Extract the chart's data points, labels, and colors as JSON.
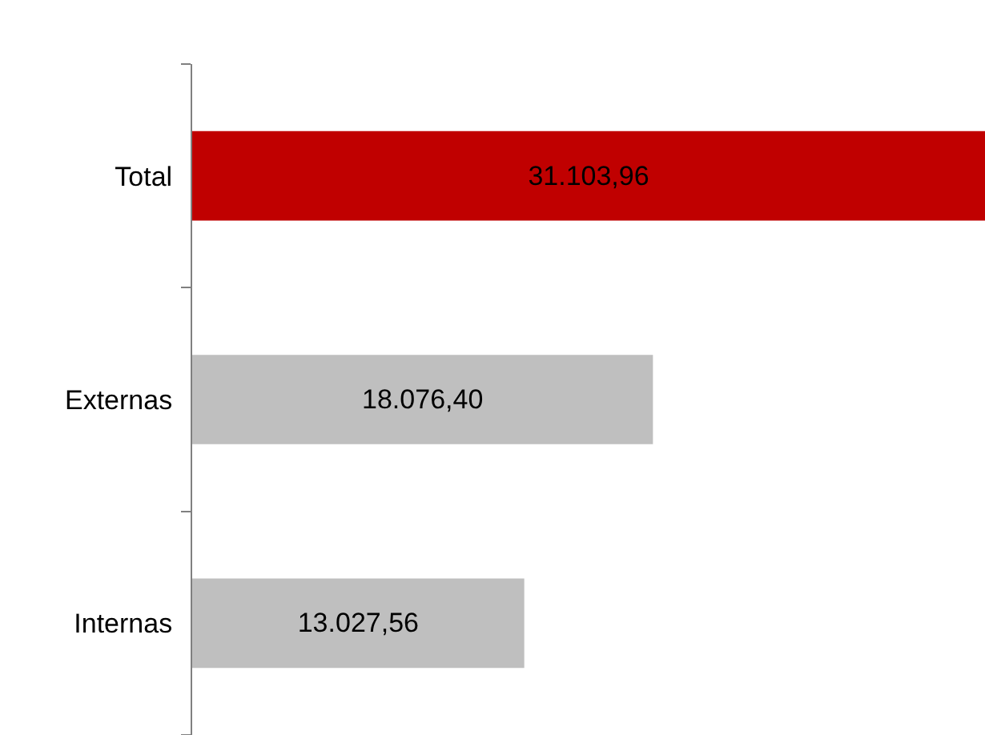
{
  "chart_data": {
    "type": "bar",
    "orientation": "horizontal",
    "categories": [
      "Total",
      "Externas",
      "Internas"
    ],
    "values": [
      31103.96,
      18076.4,
      13027.56
    ],
    "colors": [
      "#c00000",
      "#bfbfbf",
      "#bfbfbf"
    ],
    "value_labels": [
      "31.103,96",
      "18.076,40",
      "13.027,56"
    ]
  }
}
